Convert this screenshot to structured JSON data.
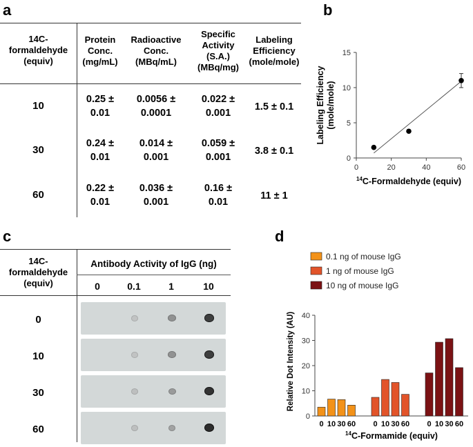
{
  "panel_a": {
    "letter": "a",
    "col_headers": [
      "14C-\nformaldehyde\n(equiv)",
      "Protein\nConc.\n(mg/mL)",
      "Radioactive\nConc.\n(MBq/mL)",
      "Specific\nActivity\n(S.A.)\n(MBq/mg)",
      "Labeling\nEfficiency\n(mole/mole)"
    ],
    "rows": [
      {
        "equiv": "10",
        "protein": "0.25 ±\n0.01",
        "radio": "0.0056 ±\n0.0001",
        "sa": "0.022 ±\n0.001",
        "eff": "1.5 ± 0.1"
      },
      {
        "equiv": "30",
        "protein": "0.24 ±\n0.01",
        "radio": "0.014 ±\n0.001",
        "sa": "0.059 ±\n0.001",
        "eff": "3.8 ± 0.1"
      },
      {
        "equiv": "60",
        "protein": "0.22 ±\n0.01",
        "radio": "0.036 ±\n0.001",
        "sa": "0.16 ±\n0.01",
        "eff": "11 ± 1"
      }
    ]
  },
  "panel_c": {
    "letter": "c",
    "row_header": "14C-\nformaldehyde\n(equiv)",
    "group_header": "Antibody Activity of IgG (ng)",
    "col_labels": [
      "0",
      "0.1",
      "1",
      "10"
    ],
    "row_labels": [
      "0",
      "10",
      "30",
      "60"
    ],
    "dot_intensity": [
      [
        0,
        0.12,
        0.45,
        0.85
      ],
      [
        0,
        0.12,
        0.45,
        0.85
      ],
      [
        0,
        0.15,
        0.4,
        0.9
      ],
      [
        0,
        0.15,
        0.35,
        0.92
      ]
    ]
  },
  "chart_data": [
    {
      "panel": "b",
      "type": "scatter",
      "x": [
        10,
        30,
        60
      ],
      "y": [
        1.5,
        3.8,
        11
      ],
      "y_err": [
        0.1,
        0.1,
        1
      ],
      "fit_line": {
        "x": [
          10,
          60
        ],
        "y": [
          0.7,
          10.9
        ]
      },
      "xlabel": "14C-Formaldehyde (equiv)",
      "ylabel": "Labeling Efficiency\n(mole/mole)",
      "xlim": [
        0,
        60
      ],
      "ylim": [
        0,
        15
      ],
      "xticks": [
        "0",
        "20",
        "40",
        "60"
      ],
      "yticks": [
        "0",
        "5",
        "10",
        "15"
      ]
    },
    {
      "panel": "d",
      "type": "bar",
      "categories": [
        "0",
        "10",
        "30",
        "60"
      ],
      "series": [
        {
          "name": "0.1 ng of mouse IgG",
          "color": "#f39219",
          "values": [
            3.5,
            6.7,
            6.5,
            4.3
          ]
        },
        {
          "name": "1 ng of mouse IgG",
          "color": "#e2542a",
          "values": [
            7.4,
            14.5,
            13.3,
            8.6
          ]
        },
        {
          "name": "10 ng of mouse IgG",
          "color": "#7b1214",
          "values": [
            17.1,
            29.3,
            30.7,
            19.2
          ]
        }
      ],
      "xlabel": "14C-Formamide (equiv)",
      "ylabel": "Relative Dot Intensity (AU)",
      "ylim": [
        0,
        40
      ],
      "yticks": [
        "0",
        "10",
        "20",
        "30",
        "40"
      ]
    }
  ]
}
